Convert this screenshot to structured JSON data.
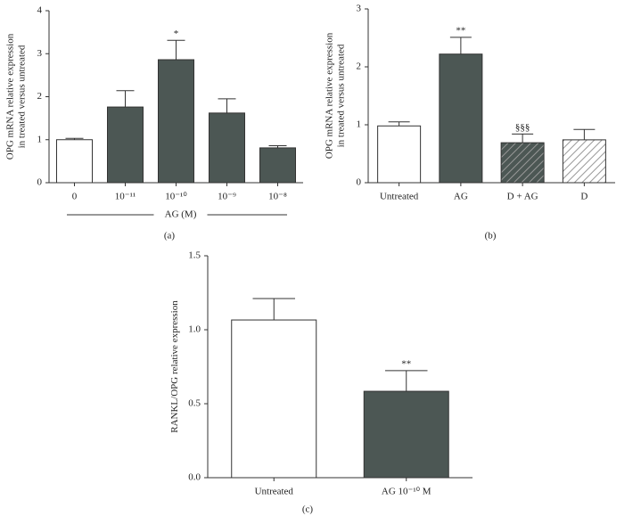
{
  "chart_data": [
    {
      "type": "bar",
      "panel_label": "(a)",
      "ylabel": [
        "OPG mRNA relative expression",
        "in treated versus untreated"
      ],
      "xlabel": "AG (M)",
      "categories": [
        "0",
        "10⁻¹¹",
        "10⁻¹⁰",
        "10⁻⁹",
        "10⁻⁸"
      ],
      "values": [
        1.0,
        1.76,
        2.86,
        1.62,
        0.81
      ],
      "errors": [
        0.03,
        0.38,
        0.45,
        0.33,
        0.05
      ],
      "annotations": [
        null,
        null,
        "*",
        null,
        null
      ],
      "colors": [
        "#ffffff",
        "#4c5754",
        "#4c5754",
        "#4c5754",
        "#4c5754"
      ],
      "hatch": [
        false,
        false,
        false,
        false,
        false
      ],
      "ylim": [
        0,
        4
      ],
      "yticks": [
        0,
        1,
        2,
        3,
        4
      ],
      "grid": false
    },
    {
      "type": "bar",
      "panel_label": "(b)",
      "ylabel": [
        "OPG mRNA relative expression",
        "in treated versus untreated"
      ],
      "categories": [
        "Untreated",
        "AG",
        "D + AG",
        "D"
      ],
      "values": [
        0.98,
        2.22,
        0.69,
        0.74
      ],
      "errors": [
        0.07,
        0.29,
        0.15,
        0.18
      ],
      "annotations": [
        null,
        "**",
        "§§§",
        null
      ],
      "colors": [
        "#ffffff",
        "#4c5754",
        "#4c5754",
        "#ffffff"
      ],
      "hatch": [
        false,
        false,
        true,
        true
      ],
      "ylim": [
        0,
        3
      ],
      "yticks": [
        0,
        1,
        2,
        3
      ],
      "grid": false
    },
    {
      "type": "bar",
      "panel_label": "(c)",
      "ylabel": [
        "RANKL/OPG relative expression"
      ],
      "categories": [
        "Untreated",
        "AG 10⁻¹⁰ M"
      ],
      "values": [
        1.066,
        0.584
      ],
      "errors": [
        0.145,
        0.14
      ],
      "annotations": [
        null,
        "**"
      ],
      "colors": [
        "#ffffff",
        "#4c5754"
      ],
      "hatch": [
        false,
        false
      ],
      "ylim": [
        0,
        1.5
      ],
      "yticks": [
        {
          "value": 0,
          "label": "0.0"
        },
        {
          "value": 0.5,
          "label": "0.5"
        },
        {
          "value": 1,
          "label": "1.0"
        },
        {
          "value": 1.5,
          "label": "1.5"
        }
      ],
      "grid": false
    }
  ]
}
